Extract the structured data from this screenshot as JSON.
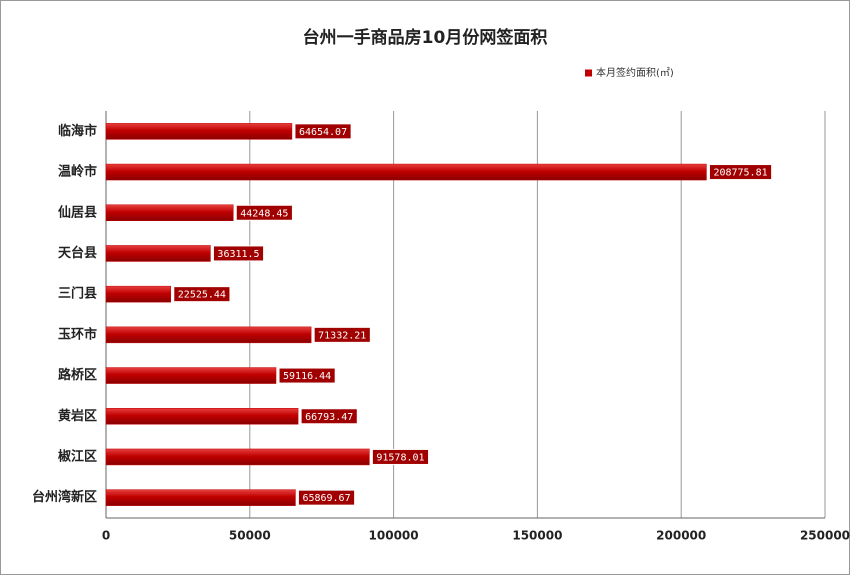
{
  "chart_data": {
    "type": "hbar",
    "title": "台州一手商品房10月份网签面积",
    "categories": [
      "临海市",
      "温岭市",
      "仙居县",
      "天台县",
      "三门县",
      "玉环市",
      "路桥区",
      "黄岩区",
      "椒江区",
      "台州湾新区"
    ],
    "series": [
      {
        "name": "本月签约面积(㎡)",
        "color": "#c00000",
        "values": [
          64654.07,
          208775.81,
          44248.45,
          36311.5,
          22525.44,
          71332.21,
          59116.44,
          66793.47,
          91578.01,
          65869.67
        ]
      }
    ],
    "xlim": [
      0,
      250000
    ],
    "xticks": [
      0,
      50000,
      100000,
      150000,
      200000,
      250000
    ],
    "grid": true,
    "legend": "top-right"
  }
}
